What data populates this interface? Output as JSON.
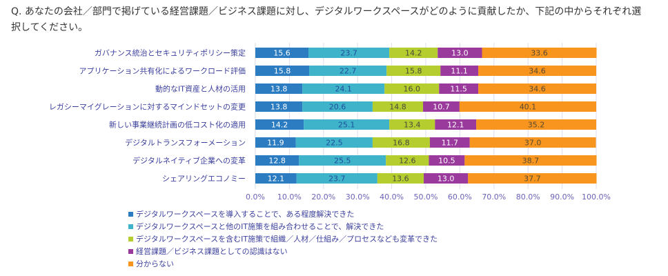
{
  "question": "Q. あなたの会社／部門で掲げている経営課題／ビジネス課題に対し、デジタルワークスペースがどのように貢献したか、下記の中からそれぞれ選択してください。",
  "chart_data": {
    "type": "bar",
    "orientation": "horizontal",
    "stacked": true,
    "title": "",
    "xlabel": "",
    "ylabel": "",
    "xlim": [
      0,
      100
    ],
    "x_ticks": [
      "0.0%",
      "10.0%",
      "20.0%",
      "30.0%",
      "40.0%",
      "50.0%",
      "60.0%",
      "70.0%",
      "80.0%",
      "90.0%",
      "100.0%"
    ],
    "grid": true,
    "legend_position": "bottom-left",
    "categories": [
      "ガバナンス統治とセキュリティポリシー策定",
      "アプリケーション共有化によるワークロード評価",
      "動的なIT資産と人材の活用",
      "レガシーマイグレーションに対するマインドセットの変更",
      "新しい事業継続計画の低コスト化の適用",
      "デジタルトランスフォーメーション",
      "デジタルネイティブ企業への変革",
      "シェアリングエコノミー"
    ],
    "series": [
      {
        "name": "デジタルワークスペースを導入することで、ある程度解決できた",
        "color": "#2b7cc1",
        "label_color": "#ffffff",
        "values": [
          15.6,
          15.8,
          13.8,
          13.8,
          14.2,
          11.9,
          12.8,
          12.1
        ]
      },
      {
        "name": "デジタルワークスペースと他のIT施策を組み合わせることで、解決できた",
        "color": "#3eb3c9",
        "label_color": "#1f4f9a",
        "values": [
          23.7,
          22.7,
          24.1,
          20.6,
          25.1,
          22.5,
          25.5,
          23.7
        ]
      },
      {
        "name": "デジタルワークスペースを含むIT施策で組織／人材／仕組み／プロセスなども変革できた",
        "color": "#b5cd2f",
        "label_color": "#4a4a3a",
        "values": [
          14.2,
          15.8,
          16.0,
          14.8,
          13.4,
          16.8,
          12.6,
          13.6
        ]
      },
      {
        "name": "経営課題／ビジネス課題としての認識はない",
        "color": "#9a3a9c",
        "label_color": "#ffffff",
        "values": [
          13.0,
          11.1,
          11.5,
          10.7,
          12.1,
          11.7,
          10.5,
          13.0
        ]
      },
      {
        "name": "分からない",
        "color": "#f7951e",
        "label_color": "#5a4a30",
        "values": [
          33.6,
          34.6,
          34.6,
          40.1,
          35.2,
          37.0,
          38.7,
          37.7
        ]
      }
    ]
  }
}
